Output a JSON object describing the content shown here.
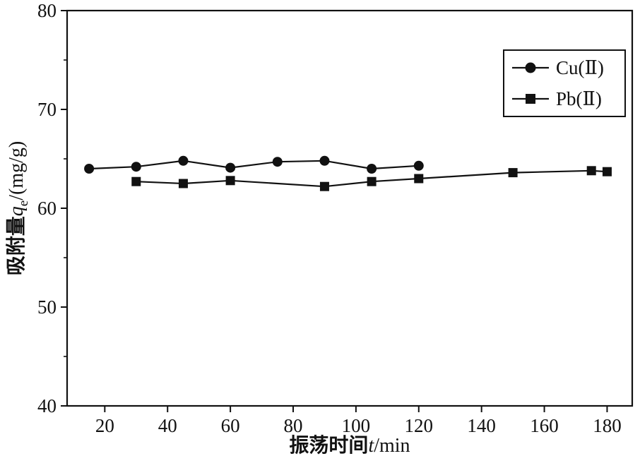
{
  "chart_data": {
    "type": "line",
    "title": "",
    "xlabel": {
      "cn": "振荡时间",
      "var": "t",
      "unit": "/min"
    },
    "ylabel": {
      "cn": "吸附量",
      "var": "q",
      "sub": "e",
      "unit": "/(mg/g)"
    },
    "xlim": [
      8,
      188
    ],
    "ylim": [
      40,
      80
    ],
    "x_ticks": [
      20,
      40,
      60,
      80,
      100,
      120,
      140,
      160,
      180
    ],
    "y_ticks": [
      40,
      50,
      60,
      70,
      80
    ],
    "y_minor_ticks": [
      45,
      55,
      65,
      75
    ],
    "grid": false,
    "legend_position": "top-right",
    "line_color": "#111111",
    "series": [
      {
        "name": "Cu(Ⅱ)",
        "marker": "circle",
        "color": "#111111",
        "x": [
          15,
          30,
          45,
          60,
          75,
          90,
          105,
          120
        ],
        "y": [
          64.0,
          64.2,
          64.8,
          64.1,
          64.7,
          64.8,
          64.0,
          64.3
        ]
      },
      {
        "name": "Pb(Ⅱ)",
        "marker": "square",
        "color": "#111111",
        "x": [
          30,
          45,
          60,
          90,
          105,
          120,
          150,
          175,
          180
        ],
        "y": [
          62.7,
          62.5,
          62.8,
          62.2,
          62.7,
          63.0,
          63.6,
          63.8,
          63.7
        ]
      }
    ]
  }
}
